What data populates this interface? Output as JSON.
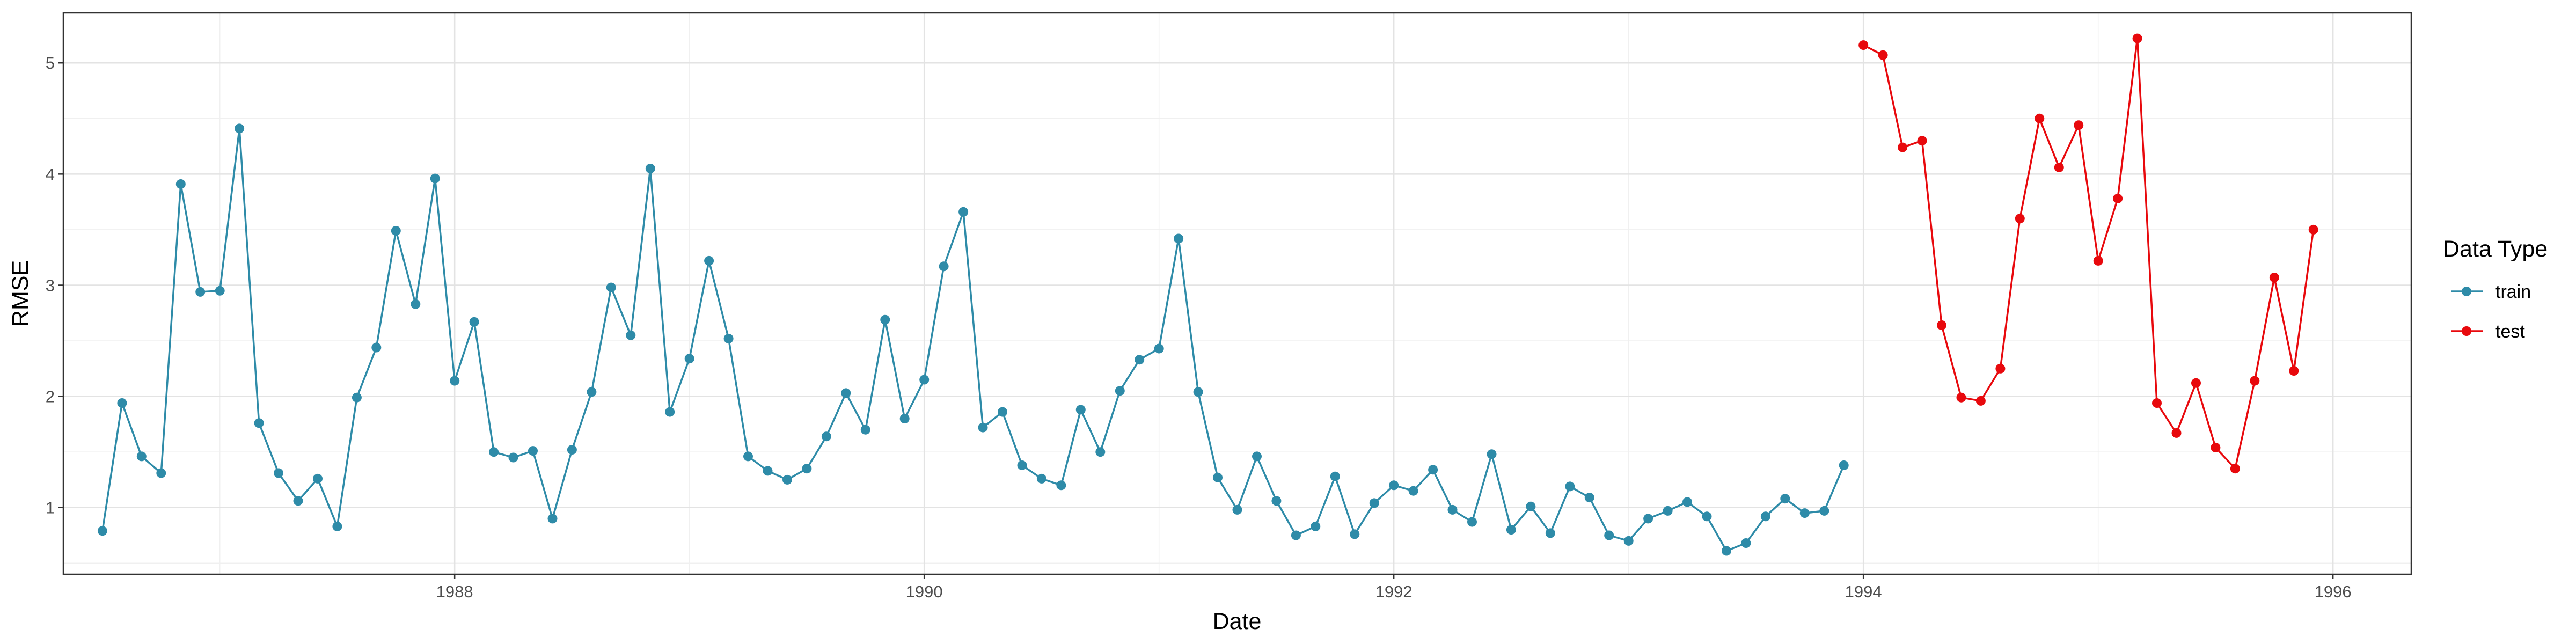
{
  "chart_data": {
    "type": "line",
    "xlabel": "Date",
    "ylabel": "RMSE",
    "x_ticks": [
      "1988",
      "1990",
      "1992",
      "1994",
      "1996"
    ],
    "y_ticks": [
      1,
      2,
      3,
      4,
      5
    ],
    "xlim": [
      "1986-05-01",
      "1996-05-01"
    ],
    "ylim": [
      0.4,
      5.45
    ],
    "grid": true,
    "legend": {
      "title": "Data Type",
      "position": "right"
    },
    "series": [
      {
        "name": "train",
        "color": "#2E8BA8",
        "x": [
          "1986-07",
          "1986-08",
          "1986-09",
          "1986-10",
          "1986-11",
          "1986-12",
          "1987-01",
          "1987-02",
          "1987-03",
          "1987-04",
          "1987-05",
          "1987-06",
          "1987-07",
          "1987-08",
          "1987-09",
          "1987-10",
          "1987-11",
          "1987-12",
          "1988-01",
          "1988-02",
          "1988-03",
          "1988-04",
          "1988-05",
          "1988-06",
          "1988-07",
          "1988-08",
          "1988-09",
          "1988-10",
          "1988-11",
          "1988-12",
          "1989-01",
          "1989-02",
          "1989-03",
          "1989-04",
          "1989-05",
          "1989-06",
          "1989-07",
          "1989-08",
          "1989-09",
          "1989-10",
          "1989-11",
          "1989-12",
          "1990-01",
          "1990-02",
          "1990-03",
          "1990-04",
          "1990-05",
          "1990-06",
          "1990-07",
          "1990-08",
          "1990-09",
          "1990-10",
          "1990-11",
          "1990-12",
          "1991-01",
          "1991-02",
          "1991-03",
          "1991-04",
          "1991-05",
          "1991-06",
          "1991-07",
          "1991-08",
          "1991-09",
          "1991-10",
          "1991-11",
          "1991-12",
          "1992-01",
          "1992-02",
          "1992-03",
          "1992-04",
          "1992-05",
          "1992-06",
          "1992-07",
          "1992-08",
          "1992-09",
          "1992-10",
          "1992-11",
          "1992-12",
          "1993-01",
          "1993-02",
          "1993-03",
          "1993-04",
          "1993-05",
          "1993-06",
          "1993-07",
          "1993-08",
          "1993-09",
          "1993-10",
          "1993-11",
          "1993-12"
        ],
        "values": [
          0.79,
          1.94,
          1.46,
          1.31,
          3.91,
          2.94,
          2.95,
          4.41,
          1.76,
          1.31,
          1.06,
          1.26,
          0.83,
          1.99,
          2.44,
          3.49,
          2.83,
          3.96,
          2.14,
          2.67,
          1.5,
          1.45,
          1.51,
          0.9,
          1.52,
          2.04,
          2.98,
          2.55,
          4.05,
          1.86,
          2.34,
          3.22,
          2.52,
          1.46,
          1.33,
          1.25,
          1.35,
          1.64,
          2.03,
          1.7,
          2.69,
          1.8,
          2.15,
          3.17,
          3.66,
          1.72,
          1.86,
          1.38,
          1.26,
          1.2,
          1.88,
          1.5,
          2.05,
          2.33,
          2.43,
          3.42,
          2.04,
          1.27,
          0.98,
          1.46,
          1.06,
          0.75,
          0.83,
          1.28,
          0.76,
          1.04,
          1.2,
          1.15,
          1.34,
          0.98,
          0.87,
          1.48,
          0.8,
          1.01,
          0.77,
          1.19,
          1.09,
          0.75,
          0.7,
          0.9,
          0.97,
          1.05,
          0.92,
          0.61,
          0.68,
          0.92,
          1.08,
          0.95,
          0.97,
          1.38
        ]
      },
      {
        "name": "test",
        "color": "#E8090D",
        "x": [
          "1994-01",
          "1994-02",
          "1994-03",
          "1994-04",
          "1994-05",
          "1994-06",
          "1994-07",
          "1994-08",
          "1994-09",
          "1994-10",
          "1994-11",
          "1994-12",
          "1995-01",
          "1995-02",
          "1995-03",
          "1995-04",
          "1995-05",
          "1995-06",
          "1995-07",
          "1995-08",
          "1995-09",
          "1995-10",
          "1995-11",
          "1995-12"
        ],
        "values": [
          5.16,
          5.07,
          4.24,
          4.3,
          2.64,
          1.99,
          1.96,
          2.25,
          3.6,
          4.5,
          4.06,
          4.44,
          3.22,
          3.78,
          5.22,
          1.94,
          1.67,
          2.12,
          1.54,
          1.35,
          2.14,
          3.07,
          2.23,
          3.5
        ]
      }
    ]
  }
}
